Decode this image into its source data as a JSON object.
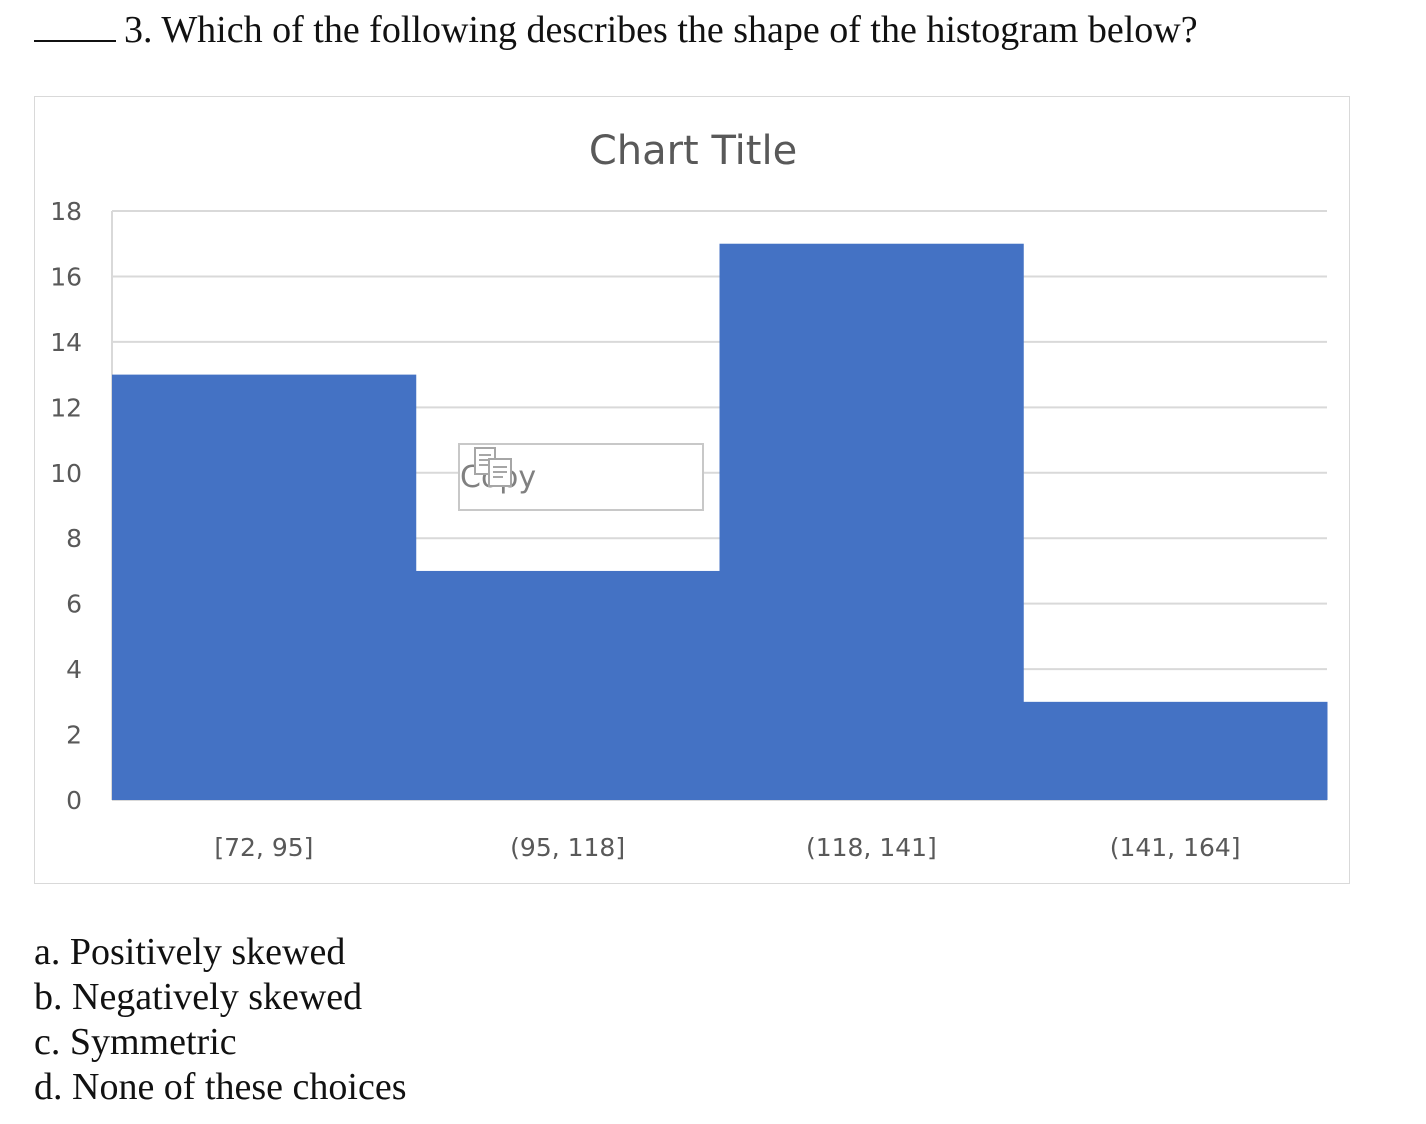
{
  "question": {
    "blank": "_____",
    "text": "3. Which of the following describes the shape of the histogram below?"
  },
  "chart_data": {
    "type": "bar",
    "title": "Chart Title",
    "categories": [
      "[72, 95]",
      "(95, 118]",
      "(118, 141]",
      "(141, 164]"
    ],
    "values": [
      13,
      7,
      17,
      3
    ],
    "ylim": [
      0,
      18
    ],
    "yticks": [
      0,
      2,
      4,
      6,
      8,
      10,
      12,
      14,
      16,
      18
    ],
    "grid": true,
    "bar_color": "#4472c4",
    "grid_color": "#d9d9d9",
    "xlabel": "",
    "ylabel": ""
  },
  "tooltip": {
    "label": "Copy",
    "icon": "copy-icon"
  },
  "answers": [
    "a. Positively skewed",
    "b. Negatively skewed",
    "c. Symmetric",
    "d. None of these choices"
  ]
}
